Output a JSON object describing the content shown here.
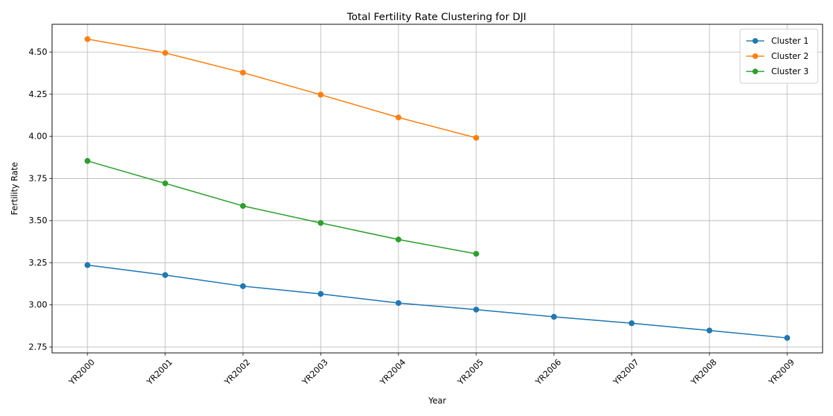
{
  "chart_data": {
    "type": "line",
    "title": "Total Fertility Rate Clustering for DJI",
    "xlabel": "Year",
    "ylabel": "Fertility Rate",
    "categories": [
      "YR2000",
      "YR2001",
      "YR2002",
      "YR2003",
      "YR2004",
      "YR2005",
      "YR2006",
      "YR2007",
      "YR2008",
      "YR2009"
    ],
    "ylim": [
      2.715,
      4.665
    ],
    "yticks": [
      2.75,
      3.0,
      3.25,
      3.5,
      3.75,
      4.0,
      4.25,
      4.5
    ],
    "ytick_labels": [
      "2.75",
      "3.00",
      "3.25",
      "3.50",
      "3.75",
      "4.00",
      "4.25",
      "4.50"
    ],
    "grid": true,
    "legend_position": "top-right",
    "series": [
      {
        "name": "Cluster 1",
        "color": "#1f77b4",
        "values": [
          3.236,
          3.177,
          3.111,
          3.065,
          3.011,
          2.972,
          2.929,
          2.891,
          2.848,
          2.804
        ]
      },
      {
        "name": "Cluster 2",
        "color": "#ff7f0e",
        "values": [
          4.577,
          4.495,
          4.378,
          4.247,
          4.112,
          3.991,
          null,
          null,
          null,
          null
        ]
      },
      {
        "name": "Cluster 3",
        "color": "#2ca02c",
        "values": [
          3.854,
          3.721,
          3.587,
          3.486,
          3.388,
          3.303,
          null,
          null,
          null,
          null
        ]
      }
    ]
  }
}
